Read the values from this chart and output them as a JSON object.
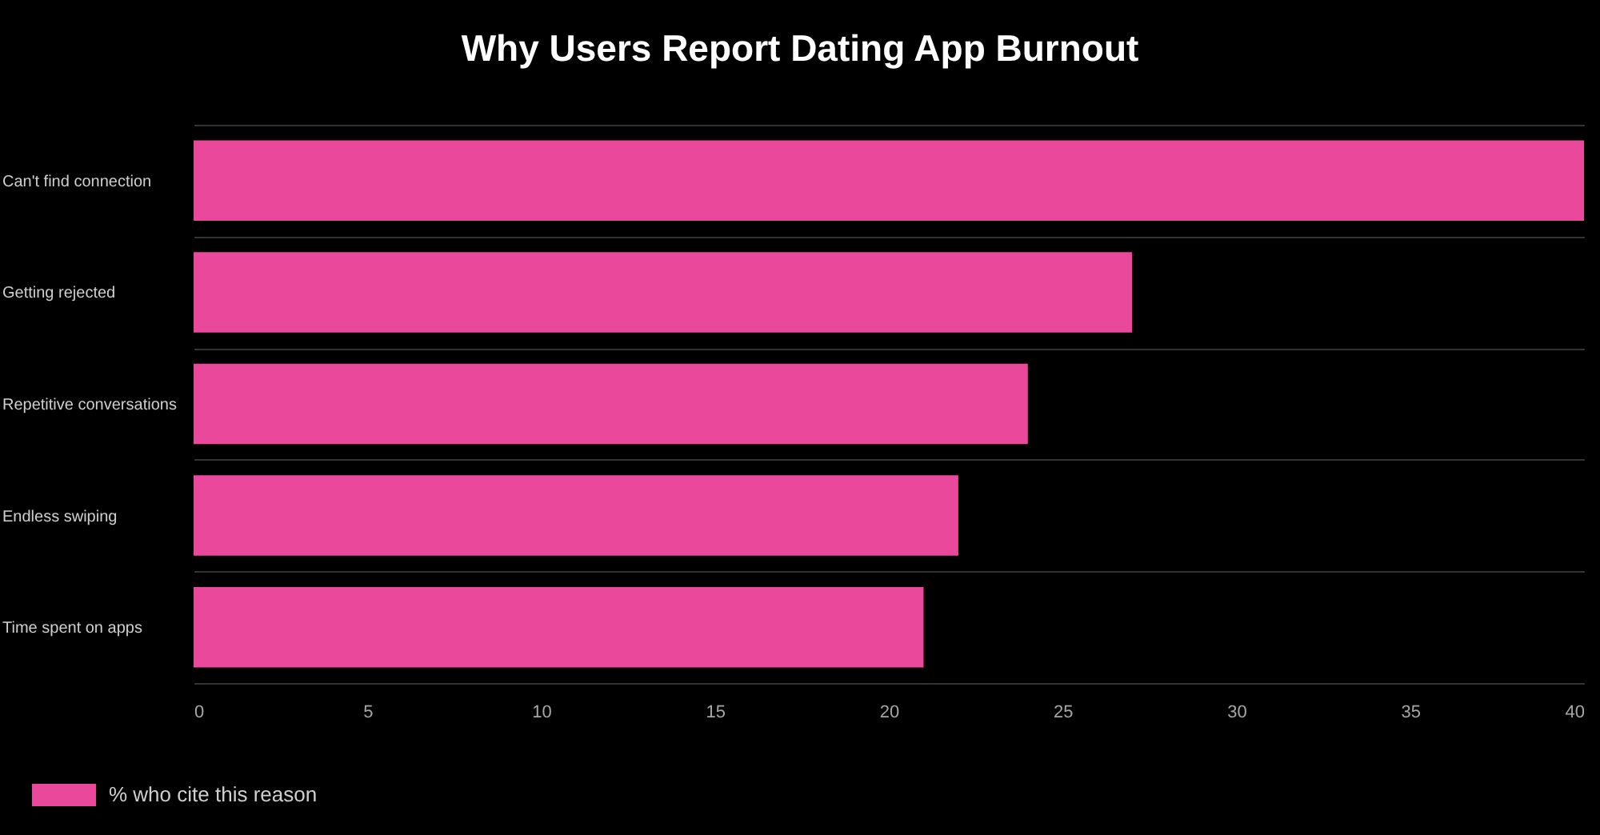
{
  "chart_data": {
    "type": "bar",
    "orientation": "horizontal",
    "title": "Why Users Report Dating App Burnout",
    "categories": [
      "Can't find connection",
      "Getting rejected",
      "Repetitive conversations",
      "Endless swiping",
      "Time spent on apps"
    ],
    "series": [
      {
        "name": "% who cite this reason",
        "color": "#e9489b",
        "values": [
          40,
          27,
          24,
          22,
          21
        ]
      }
    ],
    "xlim": [
      0,
      40
    ],
    "xticks": [
      0,
      5,
      10,
      15,
      20,
      25,
      30,
      35,
      40
    ],
    "grid": "y",
    "legend": "bottom left"
  }
}
